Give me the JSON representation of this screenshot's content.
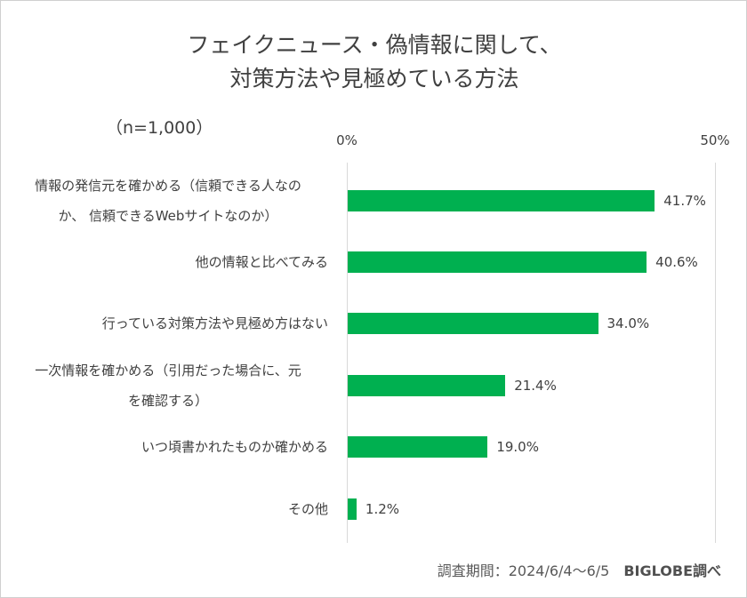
{
  "chart_data": {
    "type": "bar",
    "orientation": "horizontal",
    "title_lines": [
      "フェイクニュース・偽情報に関して、",
      "対策方法や見極めている方法"
    ],
    "sample_size": "（n=1,000）",
    "categories": [
      "情報の発信元を確かめる（信頼できる人なのか、 信頼できるWebサイトなのか）",
      "他の情報と比べてみる",
      "行っている対策方法や見極め方はない",
      "一次情報を確かめる（引用だった場合に、元を確認する）",
      "いつ頃書かれたものか確かめる",
      "その他"
    ],
    "category_lines": [
      [
        "情報の発信元を確かめる（信頼できる人なの",
        "か、 信頼できるWebサイトなのか）"
      ],
      [
        "他の情報と比べてみる"
      ],
      [
        "行っている対策方法や見極め方はない"
      ],
      [
        "一次情報を確かめる（引用だった場合に、元",
        "を確認する）"
      ],
      [
        "いつ頃書かれたものか確かめる"
      ],
      [
        "その他"
      ]
    ],
    "values": [
      41.7,
      40.6,
      34.0,
      21.4,
      19.0,
      1.2
    ],
    "value_labels": [
      "41.7%",
      "40.6%",
      "34.0%",
      "21.4%",
      "19.0%",
      "1.2%"
    ],
    "xlim": [
      0,
      50
    ],
    "tick_labels": [
      "0%",
      "50%"
    ],
    "bar_color": "#00b050",
    "xlabel": "",
    "ylabel": ""
  },
  "footer": {
    "period": "調査期間：2024/6/4～6/5",
    "source": "BIGLOBE調べ"
  }
}
